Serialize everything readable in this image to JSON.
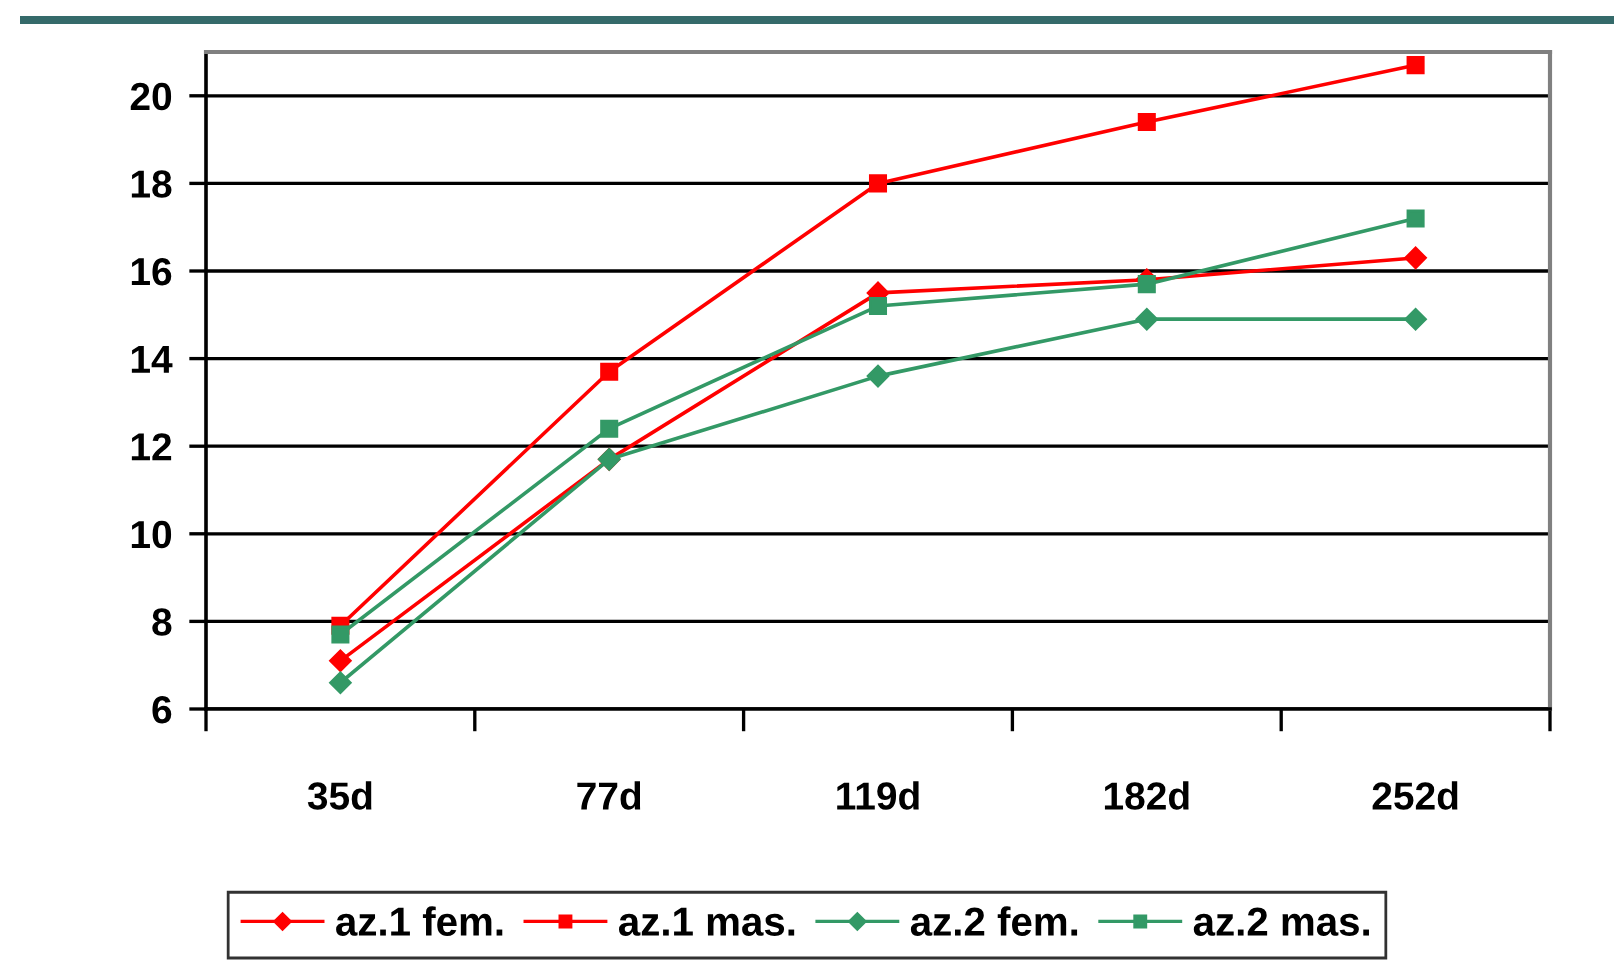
{
  "chart_data": {
    "type": "line",
    "categories": [
      "35d",
      "77d",
      "119d",
      "182d",
      "252d"
    ],
    "series": [
      {
        "name": "az.1 fem.",
        "color": "#ff0000",
        "marker": "diamond",
        "values": [
          7.1,
          11.7,
          15.5,
          15.8,
          16.3
        ]
      },
      {
        "name": "az.1 mas.",
        "color": "#ff0000",
        "marker": "square",
        "values": [
          7.9,
          13.7,
          18.0,
          19.4,
          20.7
        ]
      },
      {
        "name": "az.2 fem.",
        "color": "#339966",
        "marker": "diamond",
        "values": [
          6.6,
          11.7,
          13.6,
          14.9,
          14.9
        ]
      },
      {
        "name": "az.2 mas.",
        "color": "#339966",
        "marker": "square",
        "values": [
          7.7,
          12.4,
          15.2,
          15.7,
          17.2
        ]
      }
    ],
    "ylim": [
      6,
      21
    ],
    "yticks": [
      6,
      8,
      10,
      12,
      14,
      16,
      18,
      20
    ],
    "grid": "y",
    "legend": "bottom",
    "line_style": "solid"
  }
}
